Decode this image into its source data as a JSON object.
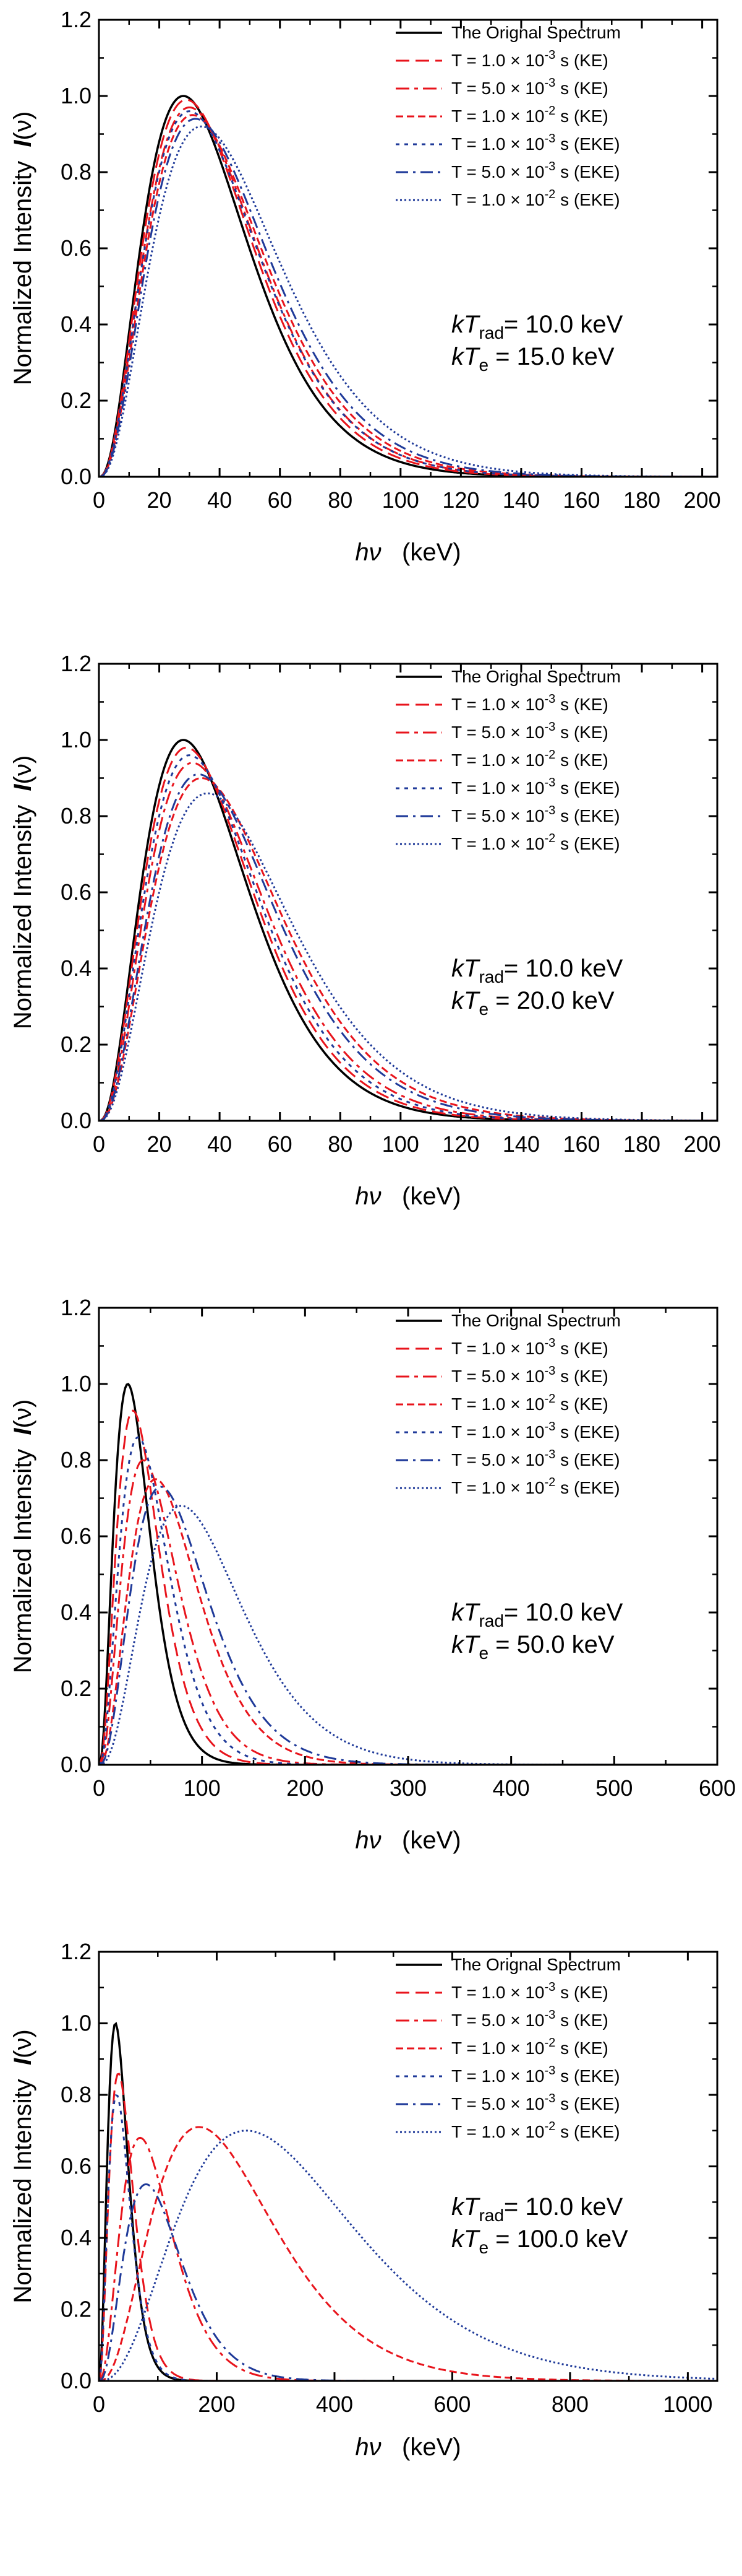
{
  "chart_data": [
    {
      "type": "line",
      "ylabel": "Normalized Intensity",
      "ylabel_symbol": "I",
      "ylabel_arg": "(ν)",
      "xlabel_symbol": "hν",
      "xlabel_unit": "(keV)",
      "xlim": [
        0,
        205
      ],
      "ylim": [
        0,
        1.2
      ],
      "x_ticks": [
        0,
        20,
        40,
        60,
        80,
        100,
        120,
        140,
        160,
        180,
        200
      ],
      "y_ticks": [
        0.0,
        0.2,
        0.4,
        0.6,
        0.8,
        1.0,
        1.2
      ],
      "annotation": {
        "line1_pre": "kT",
        "line1_sub": "rad",
        "line1_post": "= 10.0 keV",
        "line2_pre": "kT",
        "line2_sub": "e",
        "line2_post": " = 15.0 keV"
      },
      "series": [
        {
          "name": "The Orignal Spectrum",
          "color": "#000000",
          "peak_x": 28,
          "peak_y": 1.0,
          "tail": 2.5
        },
        {
          "name": "T = 1.0 × 10<sup>-3</sup> s (KE)",
          "label_pre": "T = 1.0 × 10",
          "label_exp": "-3",
          "label_post": " s (KE)",
          "color": "#e8141c",
          "peak_x": 29,
          "peak_y": 0.99,
          "tail": 2.5
        },
        {
          "name": "T = 5.0 × 10-3 s (KE)",
          "label_pre": "T = 5.0 × 10",
          "label_exp": "-3",
          "label_post": " s (KE)",
          "color": "#e8141c",
          "peak_x": 30,
          "peak_y": 0.97,
          "tail": 2.5
        },
        {
          "name": "T = 1.0 × 10-2 s (KE)",
          "label_pre": "T = 1.0 × 10",
          "label_exp": "-2",
          "label_post": " s (KE)",
          "color": "#e8141c",
          "peak_x": 31,
          "peak_y": 0.95,
          "tail": 2.5
        },
        {
          "name": "T = 1.0 × 10-3 s (EKE)",
          "label_pre": "T = 1.0 × 10",
          "label_exp": "-3",
          "label_post": " s (EKE)",
          "color": "#1f3a99",
          "peak_x": 30,
          "peak_y": 0.96,
          "tail": 2.5
        },
        {
          "name": "T = 5.0 × 10-3 s (EKE)",
          "label_pre": "T = 5.0 × 10",
          "label_exp": "-3",
          "label_post": " s (EKE)",
          "color": "#1f3a99",
          "peak_x": 32,
          "peak_y": 0.94,
          "tail": 2.5
        },
        {
          "name": "T = 1.0 × 10-2 s (EKE)",
          "label_pre": "T = 1.0 × 10",
          "label_exp": "-2",
          "label_post": " s (EKE)",
          "color": "#1f3a99",
          "peak_x": 34,
          "peak_y": 0.92,
          "tail": 2.5
        }
      ]
    },
    {
      "type": "line",
      "ylabel": "Normalized Intensity",
      "ylabel_symbol": "I",
      "ylabel_arg": "(ν)",
      "xlabel_symbol": "hν",
      "xlabel_unit": "(keV)",
      "xlim": [
        0,
        205
      ],
      "ylim": [
        0,
        1.2
      ],
      "x_ticks": [
        0,
        20,
        40,
        60,
        80,
        100,
        120,
        140,
        160,
        180,
        200
      ],
      "y_ticks": [
        0.0,
        0.2,
        0.4,
        0.6,
        0.8,
        1.0,
        1.2
      ],
      "annotation": {
        "line1_pre": "kT",
        "line1_sub": "rad",
        "line1_post": "= 10.0 keV",
        "line2_pre": "kT",
        "line2_sub": "e",
        "line2_post": " = 20.0 keV"
      },
      "series": [
        {
          "name": "The Orignal Spectrum",
          "color": "#000000",
          "peak_x": 28,
          "peak_y": 1.0,
          "tail": 2.5
        },
        {
          "name": "T = 1.0 × 10-3 s (KE)",
          "label_pre": "T = 1.0 × 10",
          "label_exp": "-3",
          "label_post": " s (KE)",
          "color": "#e8141c",
          "peak_x": 29,
          "peak_y": 0.98,
          "tail": 2.5
        },
        {
          "name": "T = 5.0 × 10-3 s (KE)",
          "label_pre": "T = 5.0 × 10",
          "label_exp": "-3",
          "label_post": " s (KE)",
          "color": "#e8141c",
          "peak_x": 31,
          "peak_y": 0.94,
          "tail": 2.5
        },
        {
          "name": "T = 1.0 × 10-2 s (KE)",
          "label_pre": "T = 1.0 × 10",
          "label_exp": "-2",
          "label_post": " s (KE)",
          "color": "#e8141c",
          "peak_x": 34,
          "peak_y": 0.9,
          "tail": 2.5
        },
        {
          "name": "T = 1.0 × 10-3 s (EKE)",
          "label_pre": "T = 1.0 × 10",
          "label_exp": "-3",
          "label_post": " s (EKE)",
          "color": "#1f3a99",
          "peak_x": 30,
          "peak_y": 0.96,
          "tail": 2.5
        },
        {
          "name": "T = 5.0 × 10-3 s (EKE)",
          "label_pre": "T = 5.0 × 10",
          "label_exp": "-3",
          "label_post": " s (EKE)",
          "color": "#1f3a99",
          "peak_x": 33,
          "peak_y": 0.91,
          "tail": 2.5
        },
        {
          "name": "T = 1.0 × 10-2 s (EKE)",
          "label_pre": "T = 1.0 × 10",
          "label_exp": "-2",
          "label_post": " s (EKE)",
          "color": "#1f3a99",
          "peak_x": 36,
          "peak_y": 0.86,
          "tail": 2.5
        }
      ]
    },
    {
      "type": "line",
      "ylabel": "Normalized Intensity",
      "ylabel_symbol": "I",
      "ylabel_arg": "(ν)",
      "xlabel_symbol": "hν",
      "xlabel_unit": "(keV)",
      "xlim": [
        0,
        600
      ],
      "ylim": [
        0,
        1.2
      ],
      "x_ticks": [
        0,
        100,
        200,
        300,
        400,
        500,
        600
      ],
      "y_ticks": [
        0.0,
        0.2,
        0.4,
        0.6,
        0.8,
        1.0,
        1.2
      ],
      "annotation": {
        "line1_pre": "kT",
        "line1_sub": "rad",
        "line1_post": "= 10.0 keV",
        "line2_pre": "kT",
        "line2_sub": "e",
        "line2_post": " = 50.0 keV"
      },
      "series": [
        {
          "name": "The Orignal Spectrum",
          "color": "#000000",
          "peak_x": 28,
          "peak_y": 1.0,
          "tail": 2.5
        },
        {
          "name": "T = 1.0 × 10-3 s (KE)",
          "label_pre": "T = 1.0 × 10",
          "label_exp": "-3",
          "label_post": " s (KE)",
          "color": "#e8141c",
          "peak_x": 33,
          "peak_y": 0.93,
          "tail": 2.5
        },
        {
          "name": "T = 5.0 × 10-3 s (KE)",
          "label_pre": "T = 5.0 × 10",
          "label_exp": "-3",
          "label_post": " s (KE)",
          "color": "#e8141c",
          "peak_x": 43,
          "peak_y": 0.8,
          "tail": 2.5
        },
        {
          "name": "T = 1.0 × 10-2 s (KE)",
          "label_pre": "T = 1.0 × 10",
          "label_exp": "-2",
          "label_post": " s (KE)",
          "color": "#e8141c",
          "peak_x": 55,
          "peak_y": 0.75,
          "tail": 2.6
        },
        {
          "name": "T = 1.0 × 10-3 s (EKE)",
          "label_pre": "T = 1.0 × 10",
          "label_exp": "-3",
          "label_post": " s (EKE)",
          "color": "#1f3a99",
          "peak_x": 38,
          "peak_y": 0.86,
          "tail": 2.5
        },
        {
          "name": "T = 5.0 × 10-3 s (EKE)",
          "label_pre": "T = 5.0 × 10",
          "label_exp": "-3",
          "label_post": " s (EKE)",
          "color": "#1f3a99",
          "peak_x": 60,
          "peak_y": 0.73,
          "tail": 2.6
        },
        {
          "name": "T = 1.0 × 10-2 s (EKE)",
          "label_pre": "T = 1.0 × 10",
          "label_exp": "-2",
          "label_post": " s (EKE)",
          "color": "#1f3a99",
          "peak_x": 80,
          "peak_y": 0.68,
          "tail": 2.7
        }
      ]
    },
    {
      "type": "line",
      "ylabel": "Normalized Intensity",
      "ylabel_symbol": "I",
      "ylabel_arg": "(ν)",
      "xlabel_symbol": "hν",
      "xlabel_unit": "(keV)",
      "xlim": [
        0,
        1050
      ],
      "ylim": [
        0,
        1.2
      ],
      "x_ticks": [
        0,
        200,
        400,
        600,
        800,
        1000
      ],
      "y_ticks": [
        0.0,
        0.2,
        0.4,
        0.6,
        0.8,
        1.0,
        1.2
      ],
      "annotation": {
        "line1_pre": "kT",
        "line1_sub": "rad",
        "line1_post": "= 10.0 keV",
        "line2_pre": "kT",
        "line2_sub": "e",
        "line2_post": " = 100.0 keV"
      },
      "series": [
        {
          "name": "The Orignal Spectrum",
          "color": "#000000",
          "peak_x": 28,
          "peak_y": 1.0,
          "tail": 2.5
        },
        {
          "name": "T = 1.0 × 10-3 s (KE)",
          "label_pre": "T = 1.0 × 10",
          "label_exp": "-3",
          "label_post": " s (KE)",
          "color": "#e8141c",
          "peak_x": 33,
          "peak_y": 0.86,
          "tail": 2.5
        },
        {
          "name": "T = 5.0 × 10-3 s (KE)",
          "label_pre": "T = 5.0 × 10",
          "label_exp": "-3",
          "label_post": " s (KE)",
          "color": "#e8141c",
          "peak_x": 70,
          "peak_y": 0.68,
          "tail": 2.5
        },
        {
          "name": "T = 1.0 × 10-2 s (KE)",
          "label_pre": "T = 1.0 × 10",
          "label_exp": "-2",
          "label_post": " s (KE)",
          "color": "#e8141c",
          "peak_x": 170,
          "peak_y": 0.71,
          "tail": 2.6
        },
        {
          "name": "T = 1.0 × 10-3 s (EKE)",
          "label_pre": "T = 1.0 × 10",
          "label_exp": "-3",
          "label_post": " s (EKE)",
          "color": "#1f3a99",
          "peak_x": 30,
          "peak_y": 0.8,
          "tail": 2.5
        },
        {
          "name": "T = 5.0 × 10-3 s (EKE)",
          "label_pre": "T = 5.0 × 10",
          "label_exp": "-3",
          "label_post": " s (EKE)",
          "color": "#1f3a99",
          "peak_x": 80,
          "peak_y": 0.55,
          "tail": 2.6
        },
        {
          "name": "T = 1.0 × 10-2 s (EKE)",
          "label_pre": "T = 1.0 × 10",
          "label_exp": "-2",
          "label_post": " s (EKE)",
          "color": "#1f3a99",
          "peak_x": 250,
          "peak_y": 0.7,
          "tail": 2.7
        }
      ]
    }
  ]
}
